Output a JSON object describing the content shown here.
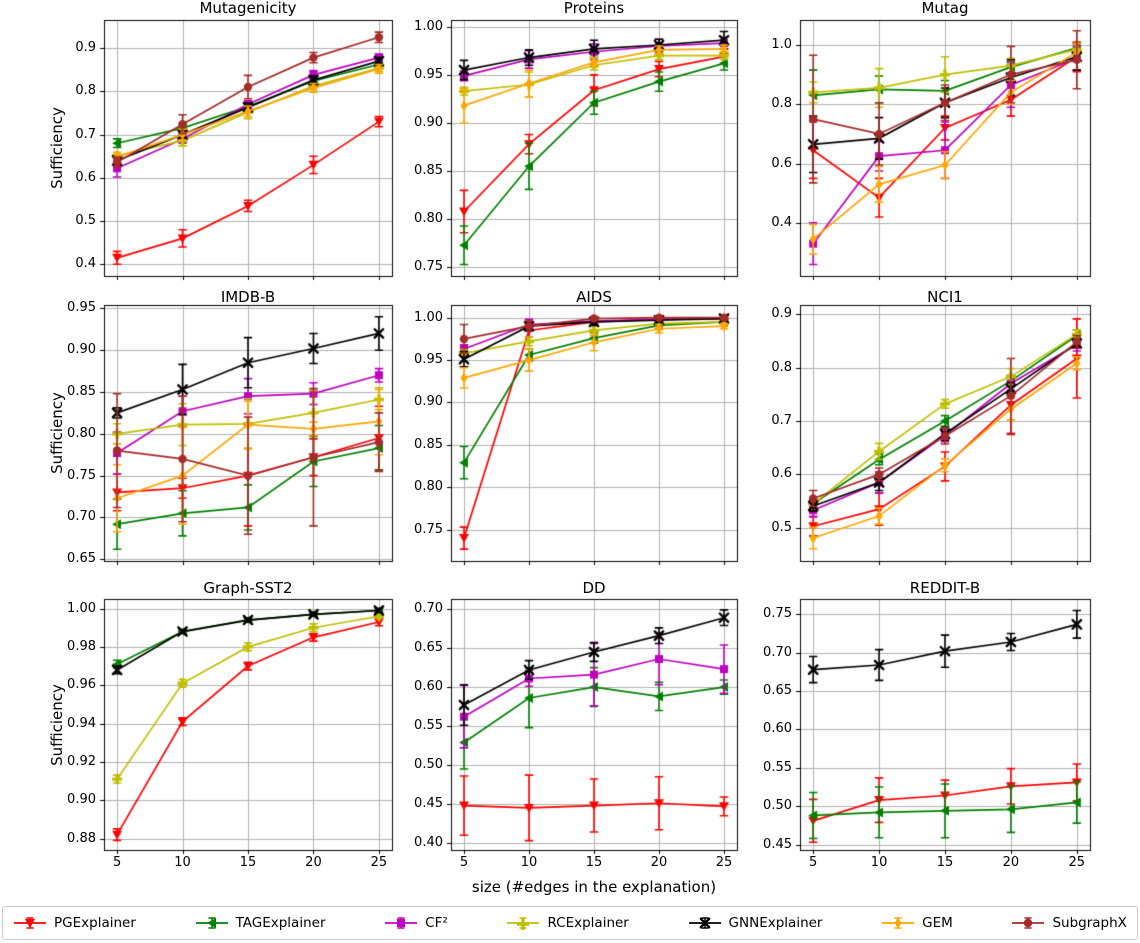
{
  "chart_data": {
    "type": "line",
    "x": [
      5,
      10,
      15,
      20,
      25
    ],
    "x_tick_labels": [
      "5",
      "10",
      "15",
      "20",
      "25"
    ],
    "xlabel": "size (#edges in the explanation)",
    "ylabel": "Sufficiency",
    "grid": true,
    "legend_position": "bottom",
    "series_meta": [
      {
        "name": "PGExplainer",
        "color": "#FF0000",
        "marker": "triangle-down"
      },
      {
        "name": "TAGExplainer",
        "color": "#008000",
        "marker": "triangle-left"
      },
      {
        "name": "CF²",
        "color": "#BF00BF",
        "marker": "square"
      },
      {
        "name": "RCExplainer",
        "color": "#BFBF00",
        "marker": "plus"
      },
      {
        "name": "GNNExplainer",
        "color": "#000000",
        "marker": "x"
      },
      {
        "name": "GEM",
        "color": "#FFA500",
        "marker": "thin-diamond"
      },
      {
        "name": "SubgraphX",
        "color": "#A52A2A",
        "marker": "circle"
      }
    ],
    "subplots": [
      {
        "title": "Mutagenicity",
        "ylim": [
          0.373,
          0.965
        ],
        "yticks": [
          "0.4",
          "0.5",
          "0.6",
          "0.7",
          "0.8",
          "0.9"
        ],
        "series": [
          {
            "values": [
              0.415,
              0.46,
              0.535,
              0.63,
              0.73
            ],
            "errors": [
              0.015,
              0.02,
              0.013,
              0.02,
              0.012
            ]
          },
          {
            "values": [
              0.68,
              0.715,
              0.765,
              0.824,
              0.862
            ],
            "errors": [
              0.01,
              0.01,
              0.01,
              0.008,
              0.008
            ]
          },
          {
            "values": [
              0.622,
              0.69,
              0.77,
              0.838,
              0.878
            ],
            "errors": [
              0.02,
              0.01,
              0.008,
              0.01,
              0.008
            ]
          },
          {
            "values": [
              0.651,
              0.686,
              0.752,
              0.812,
              0.854
            ],
            "errors": [
              0.008,
              0.012,
              0.015,
              0.008,
              0.008
            ]
          },
          {
            "values": [
              0.64,
              0.7,
              0.763,
              0.826,
              0.87
            ],
            "errors": [
              0.01,
              0.01,
              0.01,
              0.01,
              0.008
            ]
          },
          {
            "values": [
              0.648,
              0.7,
              0.754,
              0.808,
              0.852
            ],
            "errors": [
              0.01,
              0.012,
              0.012,
              0.01,
              0.01
            ]
          },
          {
            "values": [
              0.636,
              0.724,
              0.81,
              0.878,
              0.925
            ],
            "errors": [
              0.012,
              0.022,
              0.027,
              0.012,
              0.012
            ]
          }
        ]
      },
      {
        "title": "Proteins",
        "ylim": [
          0.741,
          1.007
        ],
        "yticks": [
          "0.75",
          "0.80",
          "0.85",
          "0.90",
          "0.95",
          "1.00"
        ],
        "series": [
          {
            "values": [
              0.808,
              0.878,
              0.934,
              0.956,
              0.969
            ],
            "errors": [
              0.022,
              0.01,
              0.016,
              0.008,
              0.008
            ]
          },
          {
            "values": [
              0.773,
              0.855,
              0.921,
              0.943,
              0.962
            ],
            "errors": [
              0.02,
              0.024,
              0.012,
              0.01,
              0.007
            ]
          },
          {
            "values": [
              0.949,
              0.966,
              0.974,
              0.98,
              0.983
            ],
            "errors": [
              0.005,
              0.009,
              0.008,
              0.007,
              0.006
            ]
          },
          {
            "values": [
              0.933,
              0.94,
              0.96,
              0.97,
              0.97
            ],
            "errors": [
              0.004,
              0.013,
              0.005,
              0.004,
              0.004
            ]
          },
          {
            "values": [
              0.955,
              0.968,
              0.977,
              0.981,
              0.986
            ],
            "errors": [
              0.01,
              0.008,
              0.009,
              0.006,
              0.009
            ]
          },
          {
            "values": [
              0.918,
              0.941,
              0.963,
              0.976,
              0.977
            ],
            "errors": [
              0.018,
              0.014,
              0.005,
              0.004,
              0.004
            ]
          },
          null
        ]
      },
      {
        "title": "Mutag",
        "ylim": [
          0.221,
          1.084
        ],
        "yticks": [
          "0.4",
          "0.6",
          "0.8",
          "1.0"
        ],
        "series": [
          {
            "values": [
              0.645,
              0.485,
              0.72,
              0.815,
              0.96
            ],
            "errors": [
              0.095,
              0.065,
              0.04,
              0.055,
              0.05
            ]
          },
          {
            "values": [
              0.83,
              0.85,
              0.845,
              0.925,
              0.99
            ],
            "errors": [
              0.085,
              0.045,
              0.035,
              0.02,
              0.015
            ]
          },
          {
            "values": [
              0.33,
              0.625,
              0.645,
              0.865,
              0.955
            ],
            "errors": [
              0.07,
              0.05,
              0.095,
              0.075,
              0.04
            ]
          },
          {
            "values": [
              0.84,
              0.855,
              0.9,
              0.93,
              0.985
            ],
            "errors": [
              0.035,
              0.065,
              0.06,
              0.025,
              0.02
            ]
          },
          {
            "values": [
              0.665,
              0.685,
              0.805,
              0.89,
              0.96
            ],
            "errors": [
              0.095,
              0.07,
              0.05,
              0.06,
              0.045
            ]
          },
          {
            "values": [
              0.345,
              0.53,
              0.595,
              0.84,
              0.975
            ],
            "errors": [
              0.05,
              0.06,
              0.045,
              0.04,
              0.03
            ]
          },
          {
            "values": [
              0.75,
              0.7,
              0.805,
              0.9,
              0.95
            ],
            "errors": [
              0.215,
              0.105,
              0.06,
              0.095,
              0.098
            ]
          }
        ]
      },
      {
        "title": "IMDB-B",
        "ylim": [
          0.648,
          0.954
        ],
        "yticks": [
          "0.65",
          "0.70",
          "0.75",
          "0.80",
          "0.85",
          "0.90",
          "0.95"
        ],
        "series": [
          {
            "values": [
              0.73,
              0.735,
              0.75,
              0.772,
              0.795
            ],
            "errors": [
              0.022,
              0.012,
              0.06,
              0.022,
              0.038
            ]
          },
          {
            "values": [
              0.692,
              0.705,
              0.712,
              0.767,
              0.783
            ],
            "errors": [
              0.03,
              0.027,
              0.027,
              0.03,
              0.027
            ]
          },
          {
            "values": [
              0.777,
              0.827,
              0.845,
              0.848,
              0.87
            ],
            "errors": [
              0.025,
              0.018,
              0.021,
              0.013,
              0.008
            ]
          },
          {
            "values": [
              0.8,
              0.811,
              0.812,
              0.825,
              0.841
            ],
            "errors": [
              0.012,
              0.025,
              0.03,
              0.027,
              0.012
            ]
          },
          {
            "values": [
              0.825,
              0.853,
              0.885,
              0.902,
              0.92
            ],
            "errors": [
              0.006,
              0.03,
              0.03,
              0.018,
              0.02
            ]
          },
          {
            "values": [
              0.723,
              0.75,
              0.811,
              0.806,
              0.815
            ],
            "errors": [
              0.04,
              0.058,
              0.028,
              0.008,
              0.04
            ]
          },
          {
            "values": [
              0.78,
              0.77,
              0.75,
              0.772,
              0.79
            ],
            "errors": [
              0.068,
              0.075,
              0.07,
              0.082,
              0.035
            ]
          }
        ]
      },
      {
        "title": "AIDS",
        "ylim": [
          0.713,
          1.015
        ],
        "yticks": [
          "0.75",
          "0.80",
          "0.85",
          "0.90",
          "0.95",
          "1.00"
        ],
        "series": [
          {
            "values": [
              0.74,
              0.985,
              0.995,
              0.998,
              0.999
            ],
            "errors": [
              0.013,
              0.008,
              0.004,
              0.002,
              0.001
            ]
          },
          {
            "values": [
              0.829,
              0.956,
              0.976,
              0.991,
              0.995
            ],
            "errors": [
              0.019,
              0.007,
              0.006,
              0.004,
              0.002
            ]
          },
          {
            "values": [
              0.963,
              0.992,
              0.996,
              0.998,
              0.999
            ],
            "errors": [
              0.005,
              0.006,
              0.003,
              0.002,
              0.001
            ]
          },
          {
            "values": [
              0.958,
              0.972,
              0.985,
              0.993,
              0.995
            ],
            "errors": [
              0.004,
              0.005,
              0.006,
              0.004,
              0.003
            ]
          },
          {
            "values": [
              0.951,
              0.99,
              0.995,
              0.997,
              0.999
            ],
            "errors": [
              0.009,
              0.005,
              0.004,
              0.002,
              0.001
            ]
          },
          {
            "values": [
              0.929,
              0.95,
              0.971,
              0.987,
              0.99
            ],
            "errors": [
              0.012,
              0.013,
              0.01,
              0.005,
              0.003
            ]
          },
          {
            "values": [
              0.975,
              0.99,
              0.999,
              1.0,
              1.0
            ],
            "errors": [
              0.017,
              0.006,
              0.002,
              0.001,
              0.001
            ]
          }
        ]
      },
      {
        "title": "NCI1",
        "ylim": [
          0.438,
          0.917
        ],
        "yticks": [
          "0.5",
          "0.6",
          "0.7",
          "0.8",
          "0.9"
        ],
        "series": [
          {
            "values": [
              0.503,
              0.535,
              0.615,
              0.73,
              0.817
            ],
            "errors": [
              0.018,
              0.03,
              0.027,
              0.055,
              0.074
            ]
          },
          {
            "values": [
              0.545,
              0.628,
              0.7,
              0.775,
              0.86
            ],
            "errors": [
              0.008,
              0.01,
              0.01,
              0.01,
              0.01
            ]
          },
          {
            "values": [
              0.533,
              0.585,
              0.673,
              0.77,
              0.843
            ],
            "errors": [
              0.012,
              0.02,
              0.012,
              0.012,
              0.012
            ]
          },
          {
            "values": [
              0.545,
              0.643,
              0.732,
              0.783,
              0.862
            ],
            "errors": [
              0.01,
              0.015,
              0.008,
              0.015,
              0.008
            ]
          },
          {
            "values": [
              0.541,
              0.585,
              0.676,
              0.76,
              0.845
            ],
            "errors": [
              0.01,
              0.015,
              0.012,
              0.012,
              0.008
            ]
          },
          {
            "values": [
              0.481,
              0.522,
              0.617,
              0.722,
              0.808
            ],
            "errors": [
              0.02,
              0.015,
              0.012,
              0.02,
              0.012
            ]
          },
          {
            "values": [
              0.555,
              0.6,
              0.672,
              0.747,
              0.848
            ],
            "errors": [
              0.015,
              0.012,
              0.015,
              0.07,
              0.012
            ]
          }
        ]
      },
      {
        "title": "Graph-SST2",
        "ylim": [
          0.874,
          1.005
        ],
        "yticks": [
          "0.88",
          "0.90",
          "0.92",
          "0.94",
          "0.96",
          "0.98",
          "1.00"
        ],
        "series": [
          {
            "values": [
              0.882,
              0.941,
              0.97,
              0.985,
              0.993
            ],
            "errors": [
              0.003,
              0.002,
              0.002,
              0.002,
              0.002
            ]
          },
          {
            "values": [
              0.971,
              0.988,
              0.994,
              0.997,
              0.999
            ],
            "errors": [
              0.002,
              0.001,
              0.001,
              0.001,
              0.001
            ]
          },
          null,
          {
            "values": [
              0.911,
              0.961,
              0.98,
              0.99,
              0.996
            ],
            "errors": [
              0.002,
              0.002,
              0.002,
              0.002,
              0.001
            ]
          },
          {
            "values": [
              0.968,
              0.988,
              0.994,
              0.997,
              0.999
            ],
            "errors": [
              0.002,
              0.001,
              0.001,
              0.001,
              0.001
            ]
          },
          null,
          null
        ]
      },
      {
        "title": "DD",
        "ylim": [
          0.391,
          0.713
        ],
        "yticks": [
          "0.40",
          "0.45",
          "0.50",
          "0.55",
          "0.60",
          "0.65",
          "0.70"
        ],
        "series": [
          {
            "values": [
              0.448,
              0.445,
              0.448,
              0.451,
              0.447
            ],
            "errors": [
              0.038,
              0.042,
              0.034,
              0.034,
              0.012
            ]
          },
          {
            "values": [
              0.529,
              0.586,
              0.6,
              0.588,
              0.6
            ],
            "errors": [
              0.034,
              0.038,
              0.025,
              0.018,
              0.009
            ]
          },
          {
            "values": [
              0.562,
              0.611,
              0.616,
              0.636,
              0.623
            ],
            "errors": [
              0.04,
              0.01,
              0.04,
              0.033,
              0.031
            ]
          },
          null,
          {
            "values": [
              0.577,
              0.622,
              0.645,
              0.666,
              0.689
            ],
            "errors": [
              0.026,
              0.012,
              0.012,
              0.01,
              0.01
            ]
          },
          null,
          null
        ]
      },
      {
        "title": "REDDIT-B",
        "ylim": [
          0.443,
          0.77
        ],
        "yticks": [
          "0.45",
          "0.50",
          "0.55",
          "0.60",
          "0.65",
          "0.70",
          "0.75"
        ],
        "series": [
          {
            "values": [
              0.481,
              0.508,
              0.514,
              0.526,
              0.531
            ],
            "errors": [
              0.028,
              0.029,
              0.02,
              0.023,
              0.024
            ]
          },
          {
            "values": [
              0.488,
              0.492,
              0.494,
              0.496,
              0.505
            ],
            "errors": [
              0.03,
              0.033,
              0.035,
              0.03,
              0.027
            ]
          },
          null,
          null,
          {
            "values": [
              0.678,
              0.684,
              0.702,
              0.714,
              0.737
            ],
            "errors": [
              0.017,
              0.02,
              0.021,
              0.011,
              0.018
            ]
          },
          null,
          null
        ]
      }
    ]
  }
}
